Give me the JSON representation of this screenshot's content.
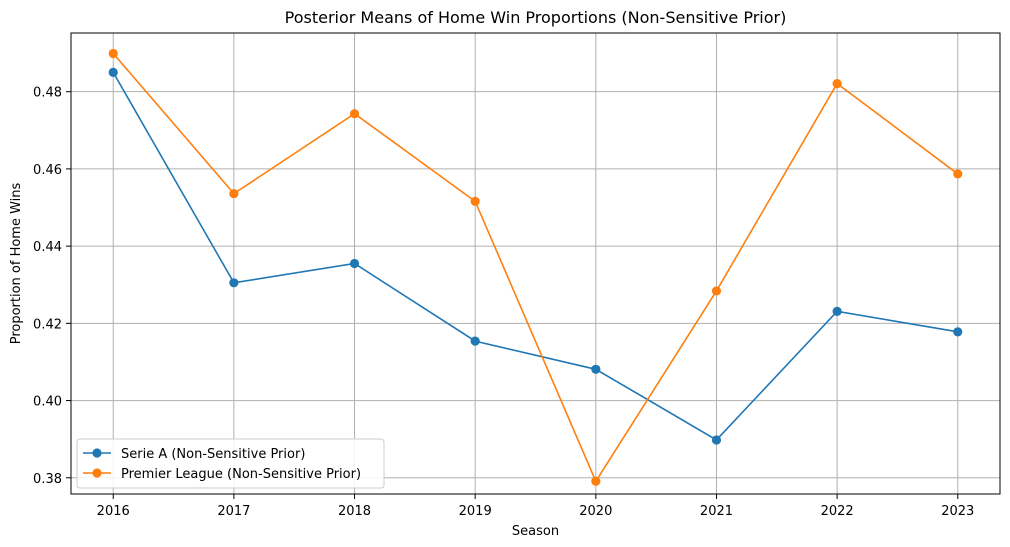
{
  "chart_data": {
    "type": "line",
    "title": "Posterior Means of Home Win Proportions (Non-Sensitive Prior)",
    "xlabel": "Season",
    "ylabel": "Proportion of Home Wins",
    "x": [
      2016,
      2017,
      2018,
      2019,
      2020,
      2021,
      2022,
      2023
    ],
    "xlim": [
      2015.65,
      2023.35
    ],
    "ylim": [
      0.3758,
      0.4952
    ],
    "yticks": [
      0.38,
      0.4,
      0.42,
      0.44,
      0.46,
      0.48
    ],
    "ytick_labels": [
      "0.38",
      "0.40",
      "0.42",
      "0.44",
      "0.46",
      "0.48"
    ],
    "xtick_labels": [
      "2016",
      "2017",
      "2018",
      "2019",
      "2020",
      "2021",
      "2022",
      "2023"
    ],
    "grid": true,
    "legend_position": "lower-left",
    "series": [
      {
        "name": "Serie A (Non-Sensitive Prior)",
        "color": "#1f77b4",
        "values": [
          0.485,
          0.4305,
          0.4355,
          0.4154,
          0.4081,
          0.3898,
          0.4231,
          0.4178
        ]
      },
      {
        "name": "Premier League (Non-Sensitive Prior)",
        "color": "#ff7f0e",
        "values": [
          0.4899,
          0.4536,
          0.4743,
          0.4516,
          0.3791,
          0.4284,
          0.4821,
          0.4587
        ]
      }
    ]
  }
}
